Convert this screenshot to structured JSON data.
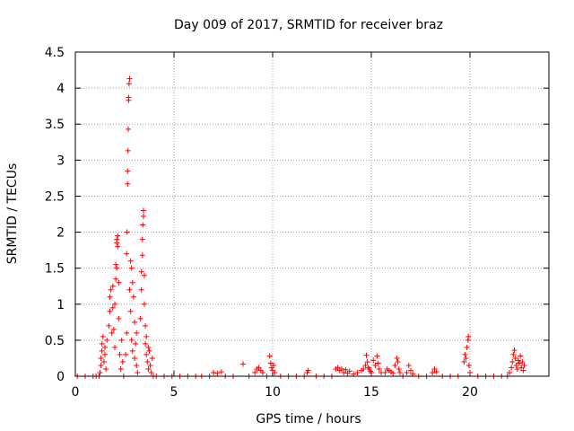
{
  "chart_data": {
    "type": "scatter",
    "title": "Day 009 of 2017, SRMTID for receiver braz",
    "xlabel": "GPS time / hours",
    "ylabel": "SRMTID / TECUs",
    "xlim": [
      0,
      24
    ],
    "ylim": [
      0,
      4.5
    ],
    "grid": true,
    "marker": "+",
    "color": "#ff0000",
    "xticks": [
      {
        "value": 0,
        "label": "0"
      },
      {
        "value": 5,
        "label": "5"
      },
      {
        "value": 10,
        "label": "10"
      },
      {
        "value": 15,
        "label": "15"
      },
      {
        "value": 20,
        "label": "20"
      }
    ],
    "yticks": [
      {
        "value": 0,
        "label": "0"
      },
      {
        "value": 0.5,
        "label": "0.5"
      },
      {
        "value": 1,
        "label": "1"
      },
      {
        "value": 1.5,
        "label": "1.5"
      },
      {
        "value": 2,
        "label": "2"
      },
      {
        "value": 2.5,
        "label": "2.5"
      },
      {
        "value": 3,
        "label": "3"
      },
      {
        "value": 3.5,
        "label": "3.5"
      },
      {
        "value": 4,
        "label": "4"
      },
      {
        "value": 4.5,
        "label": "4.5"
      }
    ],
    "series": [
      {
        "name": "SRMTID",
        "points": [
          [
            0.1,
            0
          ],
          [
            0.5,
            0
          ],
          [
            0.9,
            0
          ],
          [
            1.05,
            0
          ],
          [
            1.2,
            0
          ],
          [
            1.25,
            0.05
          ],
          [
            1.3,
            0.15
          ],
          [
            1.3,
            0.25
          ],
          [
            1.35,
            0.35
          ],
          [
            1.35,
            0.45
          ],
          [
            1.4,
            0.55
          ],
          [
            1.45,
            0.2
          ],
          [
            1.5,
            0.3
          ],
          [
            1.5,
            0.4
          ],
          [
            1.55,
            0.1
          ],
          [
            1.6,
            0.5
          ],
          [
            1.7,
            0.7
          ],
          [
            1.75,
            0.9
          ],
          [
            1.75,
            1.1
          ],
          [
            1.8,
            1.2
          ],
          [
            1.85,
            0.6
          ],
          [
            1.9,
            0.95
          ],
          [
            1.9,
            1.25
          ],
          [
            1.95,
            0.65
          ],
          [
            2.0,
            0.4
          ],
          [
            2.0,
            1.0
          ],
          [
            2.05,
            1.35
          ],
          [
            2.05,
            1.55
          ],
          [
            2.1,
            1.5
          ],
          [
            2.1,
            1.85
          ],
          [
            2.1,
            1.9
          ],
          [
            2.15,
            1.95
          ],
          [
            2.15,
            1.8
          ],
          [
            2.2,
            1.3
          ],
          [
            2.2,
            0.8
          ],
          [
            2.25,
            0.3
          ],
          [
            2.3,
            0.1
          ],
          [
            2.35,
            0.5
          ],
          [
            2.4,
            0.2
          ],
          [
            2.45,
            0
          ],
          [
            2.55,
            0.3
          ],
          [
            2.6,
            0.6
          ],
          [
            2.6,
            1.7
          ],
          [
            2.62,
            2.0
          ],
          [
            2.65,
            2.67
          ],
          [
            2.65,
            2.85
          ],
          [
            2.67,
            3.13
          ],
          [
            2.68,
            3.43
          ],
          [
            2.7,
            3.83
          ],
          [
            2.7,
            3.87
          ],
          [
            2.72,
            4.06
          ],
          [
            2.75,
            4.13
          ],
          [
            2.75,
            1.2
          ],
          [
            2.8,
            0.9
          ],
          [
            2.8,
            1.6
          ],
          [
            2.85,
            0.5
          ],
          [
            2.85,
            1.5
          ],
          [
            2.9,
            1.3
          ],
          [
            2.9,
            0.35
          ],
          [
            2.95,
            1.1
          ],
          [
            3.0,
            0.25
          ],
          [
            3.0,
            0.75
          ],
          [
            3.05,
            0.45
          ],
          [
            3.1,
            0.15
          ],
          [
            3.1,
            0.6
          ],
          [
            3.15,
            0.05
          ],
          [
            3.3,
            0.8
          ],
          [
            3.35,
            1.2
          ],
          [
            3.35,
            1.45
          ],
          [
            3.4,
            1.68
          ],
          [
            3.4,
            1.9
          ],
          [
            3.42,
            2.1
          ],
          [
            3.45,
            2.22
          ],
          [
            3.45,
            2.3
          ],
          [
            3.5,
            1.4
          ],
          [
            3.5,
            1.0
          ],
          [
            3.55,
            0.7
          ],
          [
            3.55,
            0.45
          ],
          [
            3.6,
            0.3
          ],
          [
            3.6,
            0.55
          ],
          [
            3.65,
            0.2
          ],
          [
            3.7,
            0.4
          ],
          [
            3.7,
            0.1
          ],
          [
            3.75,
            0.35
          ],
          [
            3.8,
            0.15
          ],
          [
            3.85,
            0.05
          ],
          [
            3.9,
            0.25
          ],
          [
            3.95,
            0
          ],
          [
            4.1,
            0
          ],
          [
            4.5,
            0
          ],
          [
            4.9,
            0
          ],
          [
            5.3,
            0
          ],
          [
            5.7,
            0
          ],
          [
            6.1,
            0
          ],
          [
            6.4,
            0
          ],
          [
            6.8,
            0
          ],
          [
            7.0,
            0.05
          ],
          [
            7.2,
            0.04
          ],
          [
            7.4,
            0.06
          ],
          [
            7.6,
            0
          ],
          [
            8.0,
            0
          ],
          [
            8.5,
            0.17
          ],
          [
            8.8,
            0
          ],
          [
            9.1,
            0.05
          ],
          [
            9.2,
            0.1
          ],
          [
            9.3,
            0.12
          ],
          [
            9.4,
            0.08
          ],
          [
            9.5,
            0.05
          ],
          [
            9.7,
            0
          ],
          [
            9.85,
            0.28
          ],
          [
            9.9,
            0.18
          ],
          [
            9.95,
            0.12
          ],
          [
            10.0,
            0.08
          ],
          [
            10.05,
            0.15
          ],
          [
            10.1,
            0.05
          ],
          [
            10.4,
            0
          ],
          [
            10.8,
            0
          ],
          [
            11.2,
            0
          ],
          [
            11.6,
            0
          ],
          [
            11.75,
            0.05
          ],
          [
            11.8,
            0.08
          ],
          [
            12.2,
            0
          ],
          [
            12.6,
            0
          ],
          [
            13.0,
            0
          ],
          [
            13.2,
            0.1
          ],
          [
            13.3,
            0.12
          ],
          [
            13.4,
            0.08
          ],
          [
            13.5,
            0.1
          ],
          [
            13.6,
            0.05
          ],
          [
            13.7,
            0.09
          ],
          [
            13.8,
            0.04
          ],
          [
            13.9,
            0.07
          ],
          [
            14.1,
            0.03
          ],
          [
            14.3,
            0.05
          ],
          [
            14.5,
            0.08
          ],
          [
            14.6,
            0.1
          ],
          [
            14.7,
            0.15
          ],
          [
            14.75,
            0.29
          ],
          [
            14.8,
            0.2
          ],
          [
            14.85,
            0.12
          ],
          [
            14.9,
            0.1
          ],
          [
            14.95,
            0.07
          ],
          [
            15.0,
            0.05
          ],
          [
            15.1,
            0.22
          ],
          [
            15.2,
            0.15
          ],
          [
            15.3,
            0.28
          ],
          [
            15.35,
            0.18
          ],
          [
            15.4,
            0.1
          ],
          [
            15.5,
            0.05
          ],
          [
            15.7,
            0.05
          ],
          [
            15.8,
            0.1
          ],
          [
            15.9,
            0.08
          ],
          [
            16.0,
            0.06
          ],
          [
            16.1,
            0.04
          ],
          [
            16.2,
            0.15
          ],
          [
            16.3,
            0.25
          ],
          [
            16.35,
            0.2
          ],
          [
            16.4,
            0.1
          ],
          [
            16.45,
            0.05
          ],
          [
            16.6,
            0
          ],
          [
            16.8,
            0.05
          ],
          [
            16.9,
            0.15
          ],
          [
            17.0,
            0.08
          ],
          [
            17.1,
            0.03
          ],
          [
            17.4,
            0
          ],
          [
            17.8,
            0
          ],
          [
            18.1,
            0.05
          ],
          [
            18.2,
            0.1
          ],
          [
            18.3,
            0.06
          ],
          [
            18.6,
            0
          ],
          [
            19.0,
            0
          ],
          [
            19.4,
            0
          ],
          [
            19.7,
            0.2
          ],
          [
            19.75,
            0.3
          ],
          [
            19.8,
            0.25
          ],
          [
            19.85,
            0.4
          ],
          [
            19.9,
            0.5
          ],
          [
            19.92,
            0.55
          ],
          [
            19.95,
            0.15
          ],
          [
            20.0,
            0.05
          ],
          [
            20.4,
            0
          ],
          [
            20.8,
            0
          ],
          [
            21.2,
            0
          ],
          [
            21.6,
            0
          ],
          [
            21.9,
            0
          ],
          [
            22.0,
            0.05
          ],
          [
            22.1,
            0.12
          ],
          [
            22.15,
            0.2
          ],
          [
            22.2,
            0.3
          ],
          [
            22.25,
            0.36
          ],
          [
            22.3,
            0.25
          ],
          [
            22.35,
            0.15
          ],
          [
            22.4,
            0.1
          ],
          [
            22.45,
            0.22
          ],
          [
            22.5,
            0.18
          ],
          [
            22.55,
            0.28
          ],
          [
            22.6,
            0.12
          ],
          [
            22.65,
            0.2
          ],
          [
            22.7,
            0.08
          ],
          [
            22.75,
            0.15
          ]
        ]
      }
    ]
  }
}
